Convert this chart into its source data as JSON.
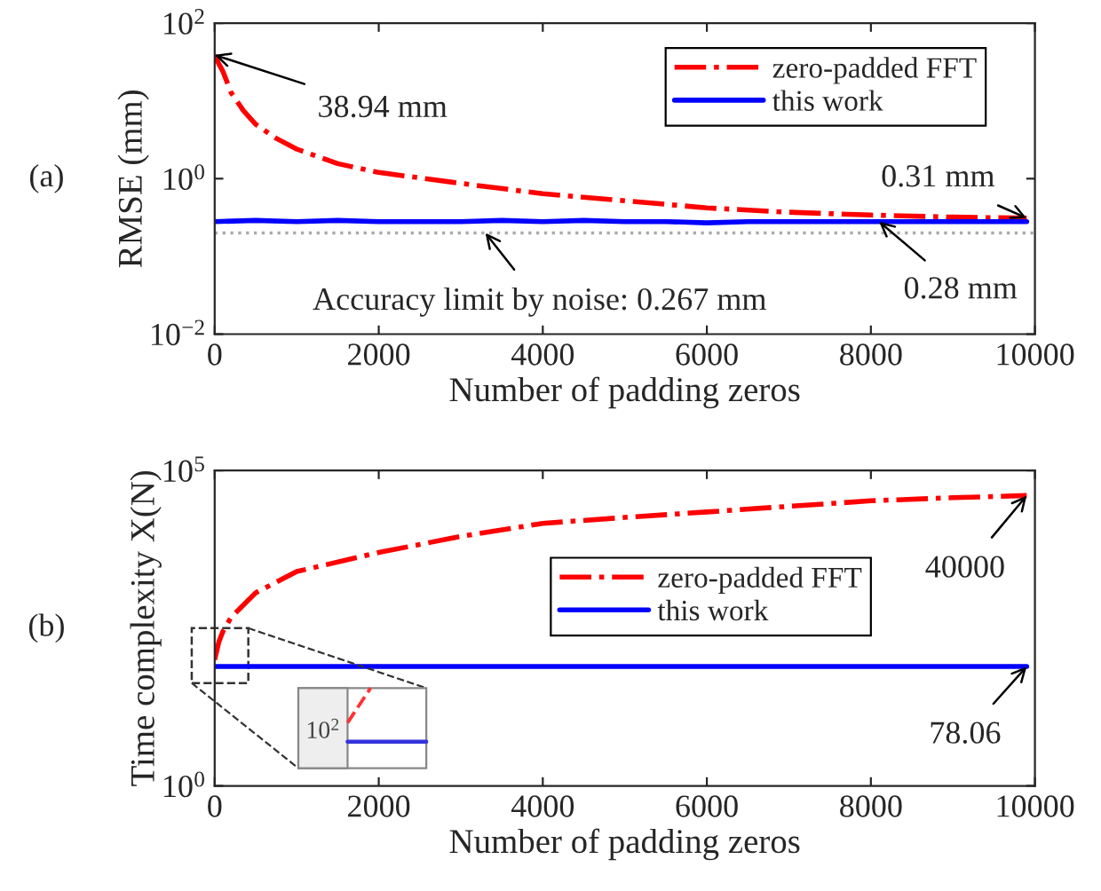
{
  "chart_data": [
    {
      "type": "line",
      "ylabel": "RMSE (mm)",
      "xlabel": "Number of padding zeros",
      "log": "y",
      "xlim": [
        0,
        10000
      ],
      "xticks": [
        0,
        2000,
        4000,
        6000,
        8000,
        10000
      ],
      "ylim": [
        0.01,
        100
      ],
      "yticks": [
        {
          "value": 0.01,
          "label": "10$^{−2}$"
        },
        {
          "value": 1,
          "label": "10$^{0}$"
        },
        {
          "value": 100,
          "label": "10$^{2}$"
        }
      ],
      "grid": false,
      "legend": "top right",
      "series": [
        {
          "name": "zero-padded FFT",
          "color": "#ff0000",
          "line_style": "dashdot",
          "x": [
            0,
            50,
            100,
            200,
            350,
            500,
            750,
            1000,
            1500,
            2000,
            3000,
            4000,
            5000,
            6000,
            7000,
            8000,
            9000,
            9900
          ],
          "values": [
            38.94,
            30,
            24,
            12.8,
            7.5,
            5,
            3.3,
            2.4,
            1.56,
            1.2,
            0.87,
            0.64,
            0.52,
            0.42,
            0.37,
            0.34,
            0.32,
            0.31
          ]
        },
        {
          "name": "this work",
          "color": "#0000ff",
          "line_style": "solid",
          "x": [
            0,
            500,
            1000,
            1500,
            2000,
            2500,
            3000,
            3500,
            4000,
            4500,
            5000,
            5500,
            6000,
            6500,
            7000,
            7500,
            8000,
            8500,
            9000,
            9500,
            9900
          ],
          "values": [
            0.28,
            0.29,
            0.28,
            0.29,
            0.28,
            0.28,
            0.28,
            0.29,
            0.28,
            0.29,
            0.28,
            0.28,
            0.27,
            0.28,
            0.28,
            0.28,
            0.28,
            0.28,
            0.28,
            0.28,
            0.28
          ]
        }
      ],
      "ref_lines": [
        {
          "axis": "y",
          "value": 0.2,
          "color": "#aaaaaa",
          "line_style": "dotted"
        }
      ],
      "annotations": [
        "(a)",
        {
          "text": "38.94 mm",
          "x": 0,
          "y": 38.94
        },
        {
          "text": "0.31 mm",
          "x": 9900,
          "y": 0.31
        },
        {
          "text": "0.28 mm",
          "x": 8100,
          "y": 0.28
        },
        {
          "text": "Accuracy limit by noise: 0.267 mm",
          "x": 3300,
          "y": 0.2
        }
      ]
    },
    {
      "type": "line",
      "ylabel": "Time complexity X(N)",
      "xlabel": "Number of padding zeros",
      "log": "y",
      "xlim": [
        0,
        10000
      ],
      "xticks": [
        0,
        2000,
        4000,
        6000,
        8000,
        10000
      ],
      "ylim": [
        1,
        100000
      ],
      "yticks": [
        {
          "value": 1,
          "label": "10$^{0}$"
        },
        {
          "value": 100000,
          "label": "10$^{5}$"
        }
      ],
      "grid": false,
      "legend": "right",
      "series": [
        {
          "name": "zero-padded FFT",
          "color": "#ff0000",
          "line_style": "dashdot",
          "x": [
            0,
            50,
            100,
            200,
            500,
            1000,
            2000,
            3000,
            4000,
            5000,
            6000,
            7000,
            8000,
            9000,
            9900
          ],
          "values": [
            100,
            190,
            280,
            470,
            1150,
            2500,
            5000,
            9000,
            14500,
            18000,
            22000,
            27000,
            33000,
            37000,
            40000
          ]
        },
        {
          "name": "this work",
          "color": "#0000ff",
          "line_style": "solid",
          "x": [
            0,
            9900
          ],
          "values": [
            78.06,
            78.06
          ]
        }
      ],
      "annotations": [
        "(b)",
        "10$^{2}$",
        {
          "text": "40000",
          "x": 9900,
          "y": 40000
        },
        {
          "text": "78.06",
          "x": 9900,
          "y": 78.06
        }
      ]
    }
  ]
}
